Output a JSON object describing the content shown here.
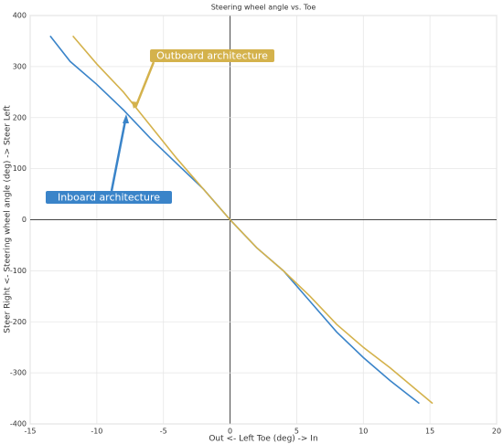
{
  "chart_data": {
    "type": "line",
    "title": "Steering wheel angle vs. Toe",
    "x_label": "Out <- Left Toe (deg) -> In",
    "y_label": "Steer Right <- Steering wheel angle (deg) -> Steer Left",
    "xlim": [
      -15,
      20
    ],
    "xticks": [
      -15,
      -10,
      -5,
      0,
      5,
      10,
      15,
      20
    ],
    "ylim": [
      -400,
      400
    ],
    "yticks": [
      -400,
      -300,
      -200,
      -100,
      0,
      100,
      200,
      300,
      400
    ],
    "grid": true,
    "series": [
      {
        "name": "Inboard architecture",
        "color": "#3a84c9",
        "x": [
          -13.5,
          -12,
          -10,
          -8,
          -6,
          -4,
          -2,
          0,
          2,
          4,
          6,
          8,
          10,
          12,
          14.2
        ],
        "values": [
          360,
          310,
          265,
          215,
          160,
          110,
          60,
          0,
          -55,
          -100,
          -160,
          -220,
          -270,
          -315,
          -360
        ]
      },
      {
        "name": "Outboard architecture",
        "color": "#d4b24c",
        "x": [
          -11.8,
          -10,
          -8,
          -6,
          -4,
          -2,
          0,
          2,
          4,
          6,
          8,
          10,
          12,
          15.2
        ],
        "values": [
          360,
          305,
          250,
          185,
          120,
          60,
          0,
          -55,
          -100,
          -150,
          -205,
          -250,
          -290,
          -360
        ]
      }
    ]
  }
}
